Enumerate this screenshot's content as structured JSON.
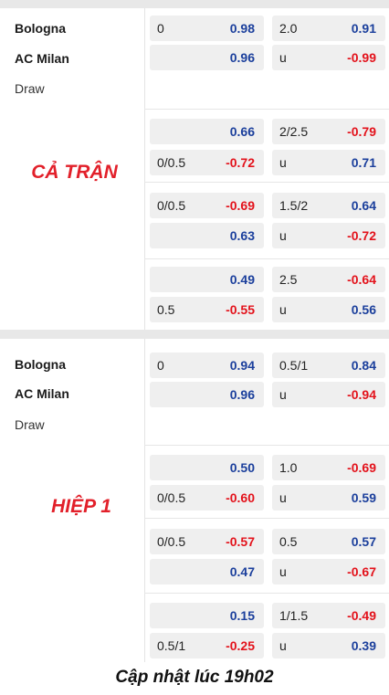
{
  "footer": "Cập nhật lúc 19h02",
  "colors": {
    "positive": "#1b3f9c",
    "negative": "#e3121b",
    "label": "#e2202a"
  },
  "sections": [
    {
      "label": "CẢ TRẬN",
      "home": "Bologna",
      "away": "AC Milan",
      "draw": "Draw",
      "blocks": [
        {
          "hcap": {
            "top": {
              "line": "0",
              "odds": "0.98"
            },
            "bottom": {
              "line": "",
              "odds": "0.96"
            }
          },
          "ou": {
            "top": {
              "line": "2.0",
              "odds": "0.91"
            },
            "bottom": {
              "line": "u",
              "odds": "-0.99"
            }
          }
        },
        {
          "hcap": {
            "top": {
              "line": "",
              "odds": "0.66"
            },
            "bottom": {
              "line": "0/0.5",
              "odds": "-0.72"
            }
          },
          "ou": {
            "top": {
              "line": "2/2.5",
              "odds": "-0.79"
            },
            "bottom": {
              "line": "u",
              "odds": "0.71"
            }
          }
        },
        {
          "hcap": {
            "top": {
              "line": "0/0.5",
              "odds": "-0.69"
            },
            "bottom": {
              "line": "",
              "odds": "0.63"
            }
          },
          "ou": {
            "top": {
              "line": "1.5/2",
              "odds": "0.64"
            },
            "bottom": {
              "line": "u",
              "odds": "-0.72"
            }
          }
        },
        {
          "hcap": {
            "top": {
              "line": "",
              "odds": "0.49"
            },
            "bottom": {
              "line": "0.5",
              "odds": "-0.55"
            }
          },
          "ou": {
            "top": {
              "line": "2.5",
              "odds": "-0.64"
            },
            "bottom": {
              "line": "u",
              "odds": "0.56"
            }
          }
        }
      ]
    },
    {
      "label": "HIỆP 1",
      "home": "Bologna",
      "away": "AC Milan",
      "draw": "Draw",
      "blocks": [
        {
          "hcap": {
            "top": {
              "line": "0",
              "odds": "0.94"
            },
            "bottom": {
              "line": "",
              "odds": "0.96"
            }
          },
          "ou": {
            "top": {
              "line": "0.5/1",
              "odds": "0.84"
            },
            "bottom": {
              "line": "u",
              "odds": "-0.94"
            }
          }
        },
        {
          "hcap": {
            "top": {
              "line": "",
              "odds": "0.50"
            },
            "bottom": {
              "line": "0/0.5",
              "odds": "-0.60"
            }
          },
          "ou": {
            "top": {
              "line": "1.0",
              "odds": "-0.69"
            },
            "bottom": {
              "line": "u",
              "odds": "0.59"
            }
          }
        },
        {
          "hcap": {
            "top": {
              "line": "0/0.5",
              "odds": "-0.57"
            },
            "bottom": {
              "line": "",
              "odds": "0.47"
            }
          },
          "ou": {
            "top": {
              "line": "0.5",
              "odds": "0.57"
            },
            "bottom": {
              "line": "u",
              "odds": "-0.67"
            }
          }
        },
        {
          "hcap": {
            "top": {
              "line": "",
              "odds": "0.15"
            },
            "bottom": {
              "line": "0.5/1",
              "odds": "-0.25"
            }
          },
          "ou": {
            "top": {
              "line": "1/1.5",
              "odds": "-0.49"
            },
            "bottom": {
              "line": "u",
              "odds": "0.39"
            }
          }
        }
      ]
    }
  ]
}
